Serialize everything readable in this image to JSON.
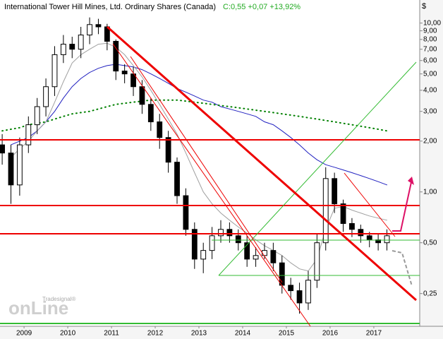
{
  "chart_data": {
    "type": "candlestick",
    "title": "International Tower Hill Mines, Ltd. Ordinary Shares (Canada)",
    "subtitle": "C:0,55 +0,07 +13,92%",
    "y_unit": "$",
    "logo": {
      "small": "Tradesignal®",
      "big": "onLine"
    },
    "log_scale": true,
    "xlim": [
      2008.95,
      2018.55
    ],
    "ylim": [
      0.16,
      13.7
    ],
    "xticks": [
      {
        "value": 2009.5,
        "label": "2009"
      },
      {
        "value": 2010.5,
        "label": "2010"
      },
      {
        "value": 2011.5,
        "label": "2011"
      },
      {
        "value": 2012.5,
        "label": "2012"
      },
      {
        "value": 2013.5,
        "label": "2013"
      },
      {
        "value": 2014.5,
        "label": "2014"
      },
      {
        "value": 2015.5,
        "label": "2015"
      },
      {
        "value": 2016.5,
        "label": "2016"
      },
      {
        "value": 2017.5,
        "label": "2017"
      }
    ],
    "yticks": [
      {
        "value": 10,
        "label": "10,00"
      },
      {
        "value": 9,
        "label": "9,00"
      },
      {
        "value": 8,
        "label": "8,00"
      },
      {
        "value": 7,
        "label": "7,00"
      },
      {
        "value": 6,
        "label": "6,00"
      },
      {
        "value": 5,
        "label": "5,00"
      },
      {
        "value": 4,
        "label": "4,00"
      },
      {
        "value": 3,
        "label": "3,00"
      },
      {
        "value": 2,
        "label": "2,00"
      },
      {
        "value": 1,
        "label": "1,00"
      },
      {
        "value": 0.5,
        "label": "0,50"
      },
      {
        "value": 0.25,
        "label": "0,25"
      }
    ],
    "x": [
      2009.0,
      2009.2,
      2009.4,
      2009.6,
      2009.8,
      2010.0,
      2010.2,
      2010.4,
      2010.6,
      2010.8,
      2011.0,
      2011.2,
      2011.4,
      2011.6,
      2011.8,
      2012.0,
      2012.2,
      2012.4,
      2012.6,
      2012.8,
      2013.0,
      2013.2,
      2013.4,
      2013.6,
      2013.8,
      2014.0,
      2014.2,
      2014.4,
      2014.6,
      2014.8,
      2015.0,
      2015.2,
      2015.4,
      2015.6,
      2015.8,
      2016.0,
      2016.2,
      2016.4,
      2016.6,
      2016.8,
      2017.0,
      2017.2,
      2017.4,
      2017.6,
      2017.8
    ],
    "open": [
      1.9,
      1.7,
      1.1,
      1.9,
      2.5,
      3.2,
      4.2,
      6.5,
      7.5,
      7.0,
      8.5,
      9.8,
      9.5,
      7.8,
      5.2,
      5.0,
      4.2,
      3.3,
      2.6,
      2.1,
      1.5,
      0.95,
      0.6,
      0.4,
      0.45,
      0.55,
      0.6,
      0.55,
      0.5,
      0.4,
      0.42,
      0.45,
      0.38,
      0.28,
      0.26,
      0.22,
      0.3,
      0.5,
      1.2,
      0.85,
      0.65,
      0.6,
      0.55,
      0.52,
      0.5
    ],
    "high": [
      2.2,
      1.9,
      2.1,
      2.8,
      3.6,
      4.7,
      7.3,
      8.5,
      8.3,
      9.5,
      10.8,
      10.6,
      9.9,
      8.0,
      5.7,
      5.5,
      4.6,
      3.6,
      2.9,
      2.3,
      1.6,
      1.05,
      0.66,
      0.5,
      0.62,
      0.68,
      0.66,
      0.6,
      0.55,
      0.47,
      0.5,
      0.5,
      0.42,
      0.31,
      0.29,
      0.34,
      0.56,
      1.4,
      1.3,
      0.9,
      0.7,
      0.64,
      0.58,
      0.56,
      0.6
    ],
    "low": [
      1.45,
      0.85,
      0.95,
      1.7,
      2.2,
      2.8,
      3.7,
      5.8,
      6.2,
      6.2,
      7.5,
      8.6,
      6.9,
      4.6,
      4.4,
      3.7,
      2.9,
      2.3,
      1.8,
      1.3,
      0.85,
      0.55,
      0.35,
      0.33,
      0.4,
      0.5,
      0.5,
      0.45,
      0.36,
      0.36,
      0.4,
      0.34,
      0.25,
      0.23,
      0.19,
      0.2,
      0.27,
      0.45,
      0.75,
      0.58,
      0.54,
      0.5,
      0.47,
      0.45,
      0.45
    ],
    "close": [
      1.7,
      1.1,
      1.9,
      2.5,
      3.2,
      4.2,
      6.5,
      7.5,
      7.0,
      8.5,
      9.8,
      9.5,
      7.8,
      5.2,
      5.0,
      4.2,
      3.3,
      2.6,
      2.1,
      1.5,
      0.95,
      0.6,
      0.4,
      0.45,
      0.55,
      0.6,
      0.55,
      0.5,
      0.4,
      0.42,
      0.45,
      0.38,
      0.28,
      0.26,
      0.22,
      0.3,
      0.5,
      1.2,
      0.85,
      0.65,
      0.6,
      0.55,
      0.52,
      0.5,
      0.55
    ],
    "up_color": "#ffffff",
    "down_color": "#000000",
    "overlays": [
      {
        "color": "#2020c0",
        "style": "solid",
        "values": [
          null,
          1.9,
          2.0,
          2.1,
          2.3,
          2.6,
          3.0,
          3.6,
          4.2,
          4.7,
          5.1,
          5.4,
          5.6,
          5.7,
          5.6,
          5.5,
          5.3,
          5.0,
          4.7,
          4.4,
          4.1,
          3.9,
          3.7,
          3.5,
          3.4,
          3.2,
          3.1,
          3.0,
          2.9,
          2.8,
          2.6,
          2.5,
          2.3,
          2.1,
          1.9,
          1.7,
          1.55,
          1.45,
          1.4,
          1.35,
          1.3,
          1.25,
          1.2,
          1.15,
          1.1
        ]
      },
      {
        "color": "#a0a0a0",
        "style": "solid",
        "values": [
          null,
          1.6,
          1.8,
          2.0,
          2.3,
          2.6,
          3.4,
          4.5,
          5.8,
          6.5,
          7.0,
          7.5,
          7.6,
          7.2,
          6.5,
          5.6,
          4.8,
          4.0,
          3.3,
          2.7,
          2.2,
          1.7,
          1.3,
          1.0,
          0.85,
          0.75,
          0.68,
          0.62,
          0.57,
          0.52,
          0.48,
          0.45,
          0.42,
          0.38,
          0.35,
          0.34,
          0.4,
          0.6,
          0.8,
          0.82,
          0.78,
          0.75,
          0.72,
          0.7,
          0.68
        ]
      },
      {
        "color": "#008000",
        "style": "dotted",
        "values": [
          2.3,
          2.35,
          2.4,
          2.5,
          2.55,
          2.6,
          2.7,
          2.8,
          2.9,
          2.95,
          3.0,
          3.1,
          3.2,
          3.3,
          3.35,
          3.4,
          3.45,
          3.5,
          3.5,
          3.5,
          3.5,
          3.45,
          3.4,
          3.35,
          3.3,
          3.25,
          3.2,
          3.15,
          3.1,
          3.05,
          3.0,
          2.95,
          2.9,
          2.85,
          2.8,
          2.75,
          2.7,
          2.65,
          2.6,
          2.55,
          2.5,
          2.45,
          2.4,
          2.35,
          2.3
        ]
      }
    ]
  }
}
